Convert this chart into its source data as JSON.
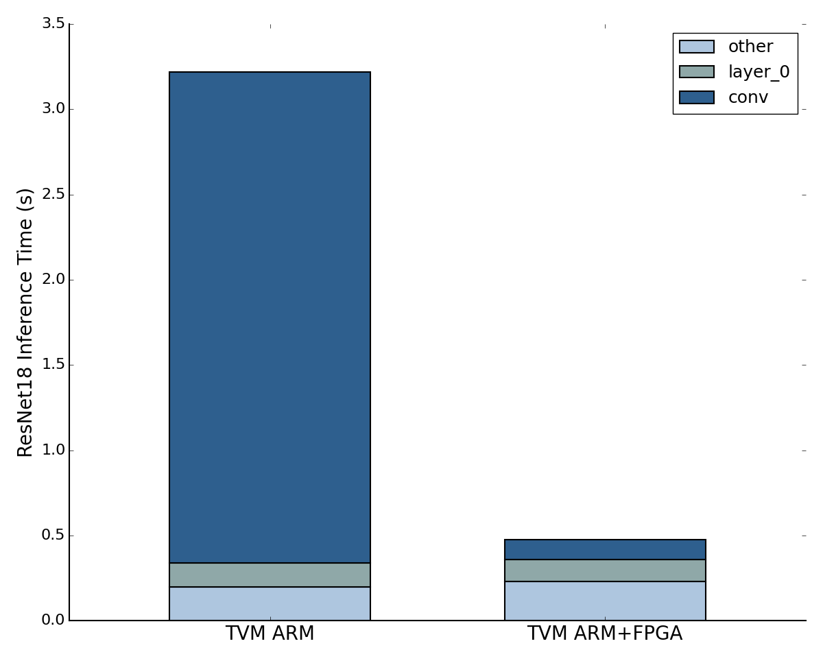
{
  "categories": [
    "TVM ARM",
    "TVM ARM+FPGA"
  ],
  "other": [
    0.2,
    0.23
  ],
  "layer_0": [
    0.14,
    0.13
  ],
  "conv": [
    2.88,
    0.115
  ],
  "colors": {
    "other": "#aec6df",
    "layer_0": "#8fa8a8",
    "conv": "#2e5f8e"
  },
  "ylabel": "ResNet18 Inference Time (s)",
  "ylim": [
    0,
    3.5
  ],
  "yticks": [
    0.0,
    0.5,
    1.0,
    1.5,
    2.0,
    2.5,
    3.0,
    3.5
  ],
  "bar_width": 0.6,
  "edgecolor": "black",
  "linewidth": 1.5,
  "figsize": [
    12.0,
    9.64
  ],
  "dpi": 100,
  "ylabel_fontsize": 20,
  "xtick_fontsize": 20,
  "ytick_fontsize": 16,
  "legend_fontsize": 18
}
